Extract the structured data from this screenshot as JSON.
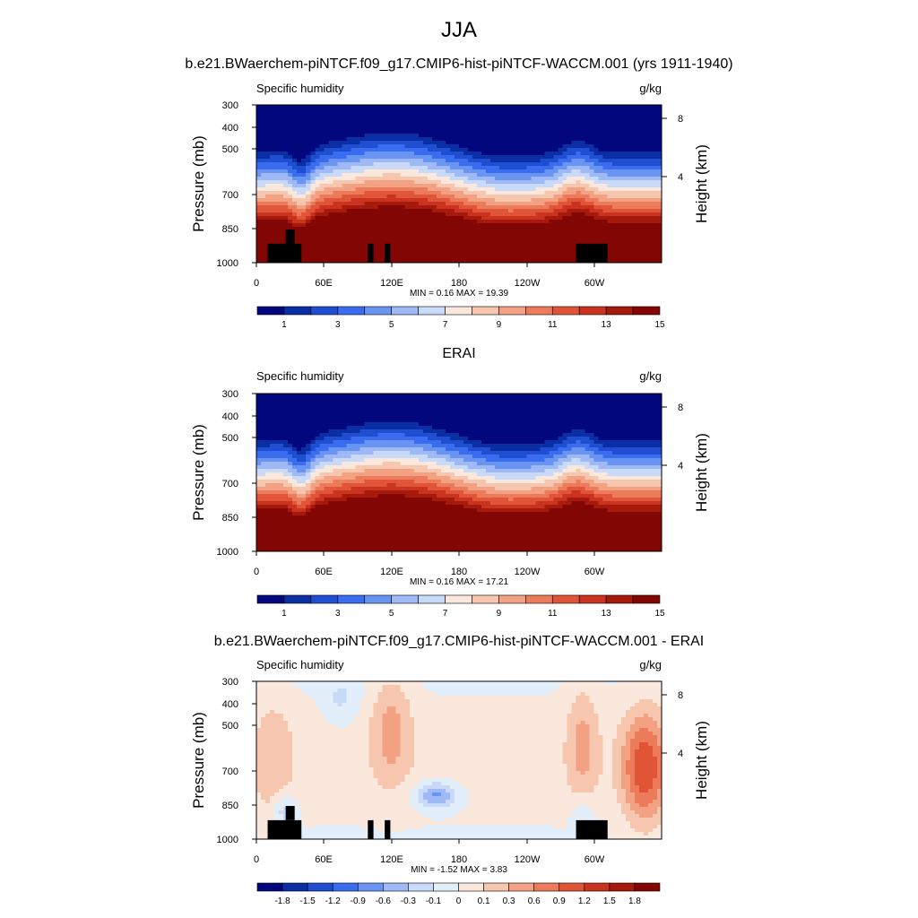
{
  "title": "JJA",
  "chart_data": [
    {
      "type": "heatmap",
      "panel_title": "b.e21.BWaerchem-piNTCF.f09_g17.CMIP6-hist-piNTCF-WACCM.001 (yrs 1911-1940)",
      "left_string": "Specific humidity",
      "right_string": "g/kg",
      "ylabel": "Pressure (mb)",
      "y2label": "Height (km)",
      "x_ticks": [
        "0",
        "60E",
        "120E",
        "180",
        "120W",
        "60W"
      ],
      "y_ticks": [
        "300",
        "400",
        "500",
        "700",
        "850",
        "1000"
      ],
      "y2_ticks": [
        "8",
        "4"
      ],
      "ylim": [
        1000,
        300
      ],
      "xlim": [
        0,
        360
      ],
      "min_max": "MIN =   0.16  MAX =  19.39",
      "min": 0.16,
      "max": 19.39,
      "colorbar_labels": [
        "1",
        "3",
        "5",
        "7",
        "9",
        "11",
        "13",
        "15"
      ],
      "colorbar_colors": [
        "#03077e",
        "#0a2ea4",
        "#1f4ed0",
        "#3a6cf0",
        "#6a94f2",
        "#9eb9f5",
        "#c8daf8",
        "#fbe8dc",
        "#f6c6ae",
        "#f2a283",
        "#ec7b5b",
        "#e05538",
        "#c93320",
        "#a61a0c",
        "#820604"
      ],
      "colorbar_labels_at_boundary": false,
      "field": "abs"
    },
    {
      "type": "heatmap",
      "panel_title": "ERAI",
      "left_string": "Specific humidity",
      "right_string": "g/kg",
      "ylabel": "Pressure (mb)",
      "y2label": "Height (km)",
      "x_ticks": [
        "0",
        "60E",
        "120E",
        "180",
        "120W",
        "60W"
      ],
      "y_ticks": [
        "300",
        "400",
        "500",
        "700",
        "850",
        "1000"
      ],
      "y2_ticks": [
        "8",
        "4"
      ],
      "ylim": [
        1000,
        300
      ],
      "xlim": [
        0,
        360
      ],
      "min_max": "MIN =   0.16  MAX =  17.21",
      "min": 0.16,
      "max": 17.21,
      "colorbar_labels": [
        "1",
        "3",
        "5",
        "7",
        "9",
        "11",
        "13",
        "15"
      ],
      "colorbar_colors": [
        "#03077e",
        "#0a2ea4",
        "#1f4ed0",
        "#3a6cf0",
        "#6a94f2",
        "#9eb9f5",
        "#c8daf8",
        "#fbe8dc",
        "#f6c6ae",
        "#f2a283",
        "#ec7b5b",
        "#e05538",
        "#c93320",
        "#a61a0c",
        "#820604"
      ],
      "colorbar_labels_at_boundary": false,
      "field": "abs"
    },
    {
      "type": "heatmap",
      "panel_title": "b.e21.BWaerchem-piNTCF.f09_g17.CMIP6-hist-piNTCF-WACCM.001 - ERAI",
      "left_string": "Specific humidity",
      "right_string": "g/kg",
      "ylabel": "Pressure (mb)",
      "y2label": "Height (km)",
      "x_ticks": [
        "0",
        "60E",
        "120E",
        "180",
        "120W",
        "60W"
      ],
      "y_ticks": [
        "300",
        "400",
        "500",
        "700",
        "850",
        "1000"
      ],
      "y2_ticks": [
        "8",
        "4"
      ],
      "ylim": [
        1000,
        300
      ],
      "xlim": [
        0,
        360
      ],
      "min_max": "MIN =  -1.52  MAX =   3.83",
      "min": -1.52,
      "max": 3.83,
      "colorbar_labels": [
        "-1.8",
        "-1.5",
        "-1.2",
        "-0.9",
        "-0.6",
        "-0.3",
        "-0.1",
        "0",
        "0.1",
        "0.3",
        "0.6",
        "0.9",
        "1.2",
        "1.5",
        "1.8"
      ],
      "colorbar_colors": [
        "#03077e",
        "#0a2ea4",
        "#1f4ed0",
        "#3a6cf0",
        "#6a94f2",
        "#9eb9f5",
        "#c8daf8",
        "#e3eefb",
        "#fbe8dc",
        "#f6c6ae",
        "#f2a283",
        "#ec7b5b",
        "#e05538",
        "#c93320",
        "#a61a0c",
        "#820604"
      ],
      "colorbar_labels_at_boundary": true,
      "field": "diff"
    }
  ]
}
